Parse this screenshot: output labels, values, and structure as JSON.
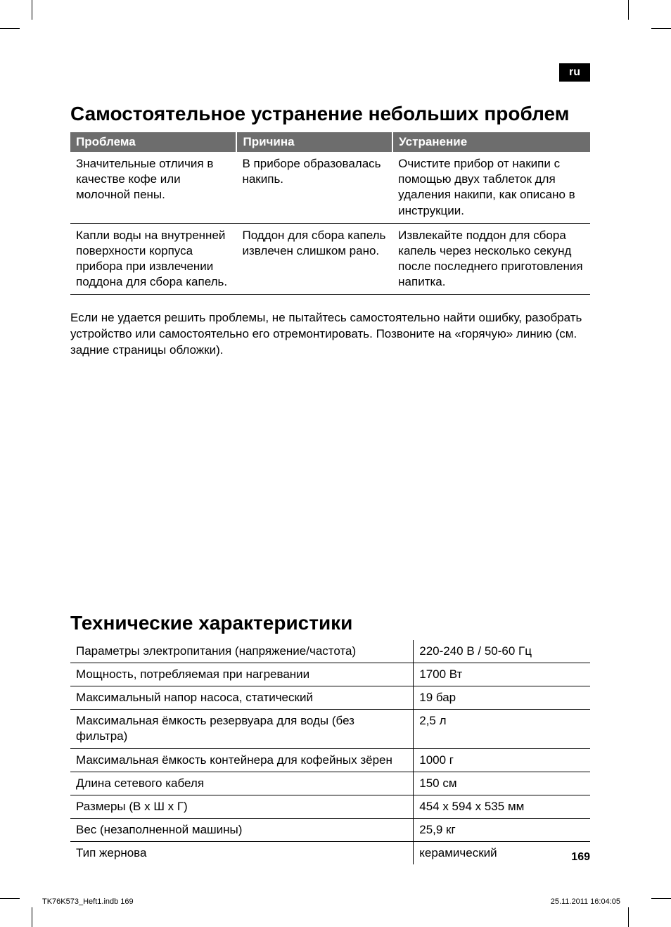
{
  "lang_badge": "ru",
  "section1_title": "Самостоятельное устранение небольших проблем",
  "trouble": {
    "headers": [
      "Проблема",
      "Причина",
      "Устранение"
    ],
    "rows": [
      {
        "problem": "Значительные отличия в качестве кофе или молочной пены.",
        "cause": "В приборе образовалась накипь.",
        "fix": "Очистите прибор от накипи с помощью двух таблеток для удаления накипи, как описано в инструкции."
      },
      {
        "problem": "Капли воды на внутренней поверхности корпуса прибора при извлечении поддона для сбора капель.",
        "cause": "Поддон для сбора капель извлечен слишком рано.",
        "fix": "Извлекайте поддон для сбора капель через несколько секунд после последнего приготовления напитка."
      }
    ]
  },
  "note_text": "Если не удается решить проблемы, не пытайтесь самостоятельно найти ошибку, разобрать устройство или самостоятельно его отремонтировать. Позвоните на «горячую» линию (см. задние страницы обложки).",
  "section2_title": "Технические характеристики",
  "specs": {
    "rows": [
      {
        "k": "Параметры электропитания (напряжение/частота)",
        "v": "220-240 В / 50-60 Гц"
      },
      {
        "k": "Мощность, потребляемая при нагревании",
        "v": "1700 Вт"
      },
      {
        "k": "Максимальный напор насоса, статический",
        "v": "19 бар"
      },
      {
        "k": "Максимальная ёмкость резервуара для воды (без фильтра)",
        "v": "2,5 л"
      },
      {
        "k": "Максимальная ёмкость контейнера для кофейных зёрен",
        "v": "1000 г"
      },
      {
        "k": "Длина сетевого кабеля",
        "v": "150 см"
      },
      {
        "k": "Размеры (В x Ш x Г)",
        "v": "454 x 594 x 535 мм"
      },
      {
        "k": "Вес (незаполненной машины)",
        "v": "25,9 кг"
      },
      {
        "k": "Тип жернова",
        "v": "керамический"
      }
    ]
  },
  "page_number": "169",
  "footer_left": "TK76K573_Heft1.indb   169",
  "footer_right": "25.11.2011   16:04:05",
  "colors": {
    "header_bg": "#6d6d6d",
    "header_fg": "#ffffff",
    "rule": "#000000",
    "badge_bg": "#000000",
    "badge_fg": "#ffffff",
    "page_bg": "#ffffff",
    "text": "#000000"
  },
  "fonts": {
    "heading_size_pt": 21,
    "body_size_pt": 13,
    "footer_size_pt": 8
  }
}
